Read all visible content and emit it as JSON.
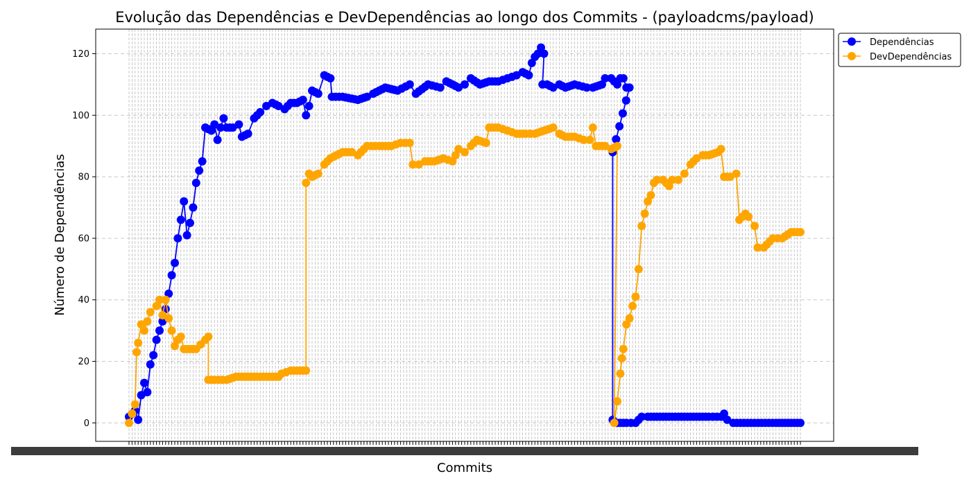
{
  "chart_data": {
    "type": "line",
    "title": "Evolução das Dependências e DevDependências ao longo dos Commits - (payloadcms/payload)",
    "xlabel": "Commits",
    "ylabel": "Número de Dependências",
    "ylim": [
      -6,
      128
    ],
    "yticks": [
      0,
      20,
      40,
      60,
      80,
      100,
      120
    ],
    "grid": "y-dashed",
    "legend_position": "top-right-outside",
    "commit_count": 220,
    "series": [
      {
        "name": "Dependências",
        "color": "#0000ff",
        "points": [
          [
            0,
            2
          ],
          [
            2,
            4
          ],
          [
            3,
            1
          ],
          [
            4,
            9
          ],
          [
            5,
            13
          ],
          [
            6,
            10
          ],
          [
            7,
            19
          ],
          [
            8,
            22
          ],
          [
            9,
            27
          ],
          [
            10,
            30
          ],
          [
            11,
            33
          ],
          [
            12,
            37
          ],
          [
            13,
            42
          ],
          [
            14,
            48
          ],
          [
            15,
            52
          ],
          [
            16,
            60
          ],
          [
            17,
            66
          ],
          [
            18,
            72
          ],
          [
            19,
            61
          ],
          [
            20,
            65
          ],
          [
            21,
            70
          ],
          [
            22,
            78
          ],
          [
            23,
            82
          ],
          [
            24,
            85
          ],
          [
            25,
            96
          ],
          [
            27,
            95
          ],
          [
            28,
            97
          ],
          [
            29,
            92
          ],
          [
            30,
            96
          ],
          [
            31,
            99
          ],
          [
            32,
            96
          ],
          [
            34,
            96
          ],
          [
            36,
            97
          ],
          [
            37,
            93
          ],
          [
            39,
            94
          ],
          [
            41,
            99
          ],
          [
            43,
            101
          ],
          [
            45,
            103
          ],
          [
            47,
            104
          ],
          [
            49,
            103
          ],
          [
            51,
            102
          ],
          [
            53,
            104
          ],
          [
            55,
            104
          ],
          [
            57,
            105
          ],
          [
            58,
            100
          ],
          [
            59,
            103
          ],
          [
            60,
            108
          ],
          [
            62,
            107
          ],
          [
            64,
            113
          ],
          [
            66,
            112
          ],
          [
            66.5,
            106
          ],
          [
            70,
            106
          ],
          [
            75,
            105
          ],
          [
            78,
            106
          ],
          [
            80,
            107
          ],
          [
            84,
            109
          ],
          [
            88,
            108
          ],
          [
            92,
            110
          ],
          [
            94,
            107
          ],
          [
            98,
            110
          ],
          [
            102,
            109
          ],
          [
            104,
            111
          ],
          [
            108,
            109
          ],
          [
            110,
            110
          ],
          [
            112,
            112
          ],
          [
            115,
            110
          ],
          [
            118,
            111
          ],
          [
            121,
            111
          ],
          [
            124,
            112
          ],
          [
            127,
            113
          ],
          [
            129,
            114
          ],
          [
            131,
            113
          ],
          [
            132,
            117
          ],
          [
            133,
            119
          ],
          [
            134,
            120
          ],
          [
            135,
            122
          ],
          [
            136,
            120
          ],
          [
            135.5,
            110
          ],
          [
            137,
            110
          ],
          [
            139,
            109
          ],
          [
            141,
            110
          ],
          [
            143,
            109
          ],
          [
            146,
            110
          ],
          [
            150,
            109
          ],
          [
            152,
            109
          ],
          [
            155,
            110
          ],
          [
            156,
            112
          ],
          [
            158,
            112
          ],
          [
            160,
            110
          ],
          [
            161,
            112
          ],
          [
            162,
            112
          ],
          [
            163,
            109
          ],
          [
            164,
            109
          ],
          [
            158.5,
            88
          ],
          [
            158.5,
            1
          ],
          [
            160,
            0
          ],
          [
            163,
            0
          ],
          [
            166,
            0
          ],
          [
            168,
            2
          ],
          [
            170,
            2
          ],
          [
            180,
            2
          ],
          [
            190,
            2
          ],
          [
            194,
            2
          ],
          [
            195,
            3
          ],
          [
            196,
            1
          ],
          [
            198,
            0
          ],
          [
            205,
            0
          ],
          [
            212,
            0
          ],
          [
            220,
            0
          ]
        ]
      },
      {
        "name": "DevDependências",
        "color": "#ffa500",
        "points": [
          [
            0,
            0
          ],
          [
            1,
            3
          ],
          [
            2,
            6
          ],
          [
            2.5,
            23
          ],
          [
            3,
            26
          ],
          [
            4,
            32
          ],
          [
            5,
            30
          ],
          [
            6,
            33
          ],
          [
            7,
            36
          ],
          [
            9,
            38
          ],
          [
            10,
            40
          ],
          [
            11,
            35
          ],
          [
            12,
            40
          ],
          [
            13,
            34
          ],
          [
            14,
            30
          ],
          [
            15,
            25
          ],
          [
            16,
            27
          ],
          [
            17,
            28
          ],
          [
            18,
            24
          ],
          [
            20,
            24
          ],
          [
            22,
            24
          ],
          [
            25,
            27
          ],
          [
            26,
            28
          ],
          [
            26,
            14
          ],
          [
            28,
            14
          ],
          [
            32,
            14
          ],
          [
            35,
            15
          ],
          [
            40,
            15
          ],
          [
            45,
            15
          ],
          [
            49,
            15
          ],
          [
            50,
            16
          ],
          [
            53,
            17
          ],
          [
            58,
            17
          ],
          [
            58,
            78
          ],
          [
            59,
            81
          ],
          [
            60,
            80
          ],
          [
            62,
            81
          ],
          [
            64,
            84
          ],
          [
            66,
            86
          ],
          [
            68,
            87
          ],
          [
            70,
            88
          ],
          [
            73,
            88
          ],
          [
            75,
            87
          ],
          [
            78,
            90
          ],
          [
            82,
            90
          ],
          [
            86,
            90
          ],
          [
            89,
            91
          ],
          [
            92,
            91
          ],
          [
            93,
            84
          ],
          [
            95,
            84
          ],
          [
            97,
            85
          ],
          [
            100,
            85
          ],
          [
            103,
            86
          ],
          [
            106,
            85
          ],
          [
            108,
            89
          ],
          [
            110,
            88
          ],
          [
            112,
            90
          ],
          [
            114,
            92
          ],
          [
            117,
            91
          ],
          [
            118,
            96
          ],
          [
            121,
            96
          ],
          [
            124,
            95
          ],
          [
            127,
            94
          ],
          [
            130,
            94
          ],
          [
            133,
            94
          ],
          [
            136,
            95
          ],
          [
            139,
            96
          ],
          [
            141,
            94
          ],
          [
            143,
            93
          ],
          [
            146,
            93
          ],
          [
            149,
            92
          ],
          [
            151,
            92
          ],
          [
            152,
            96
          ],
          [
            153,
            90
          ],
          [
            156,
            90
          ],
          [
            158,
            89
          ],
          [
            160,
            90
          ],
          [
            159,
            0
          ],
          [
            160,
            7
          ],
          [
            161,
            16
          ],
          [
            161.5,
            21
          ],
          [
            162,
            24
          ],
          [
            163,
            32
          ],
          [
            164,
            34
          ],
          [
            165,
            38
          ],
          [
            166,
            41
          ],
          [
            167,
            50
          ],
          [
            168,
            64
          ],
          [
            169,
            68
          ],
          [
            170,
            72
          ],
          [
            171,
            74
          ],
          [
            172,
            78
          ],
          [
            173,
            79
          ],
          [
            175,
            79
          ],
          [
            177,
            77
          ],
          [
            178,
            79
          ],
          [
            180,
            79
          ],
          [
            182,
            81
          ],
          [
            184,
            84
          ],
          [
            186,
            86
          ],
          [
            188,
            87
          ],
          [
            190,
            87
          ],
          [
            193,
            88
          ],
          [
            194,
            89
          ],
          [
            195,
            80
          ],
          [
            197,
            80
          ],
          [
            199,
            81
          ],
          [
            200,
            66
          ],
          [
            202,
            68
          ],
          [
            203,
            67
          ],
          [
            205,
            64
          ],
          [
            206,
            57
          ],
          [
            208,
            57
          ],
          [
            211,
            60
          ],
          [
            214,
            60
          ],
          [
            217,
            62
          ],
          [
            220,
            62
          ]
        ]
      }
    ]
  }
}
